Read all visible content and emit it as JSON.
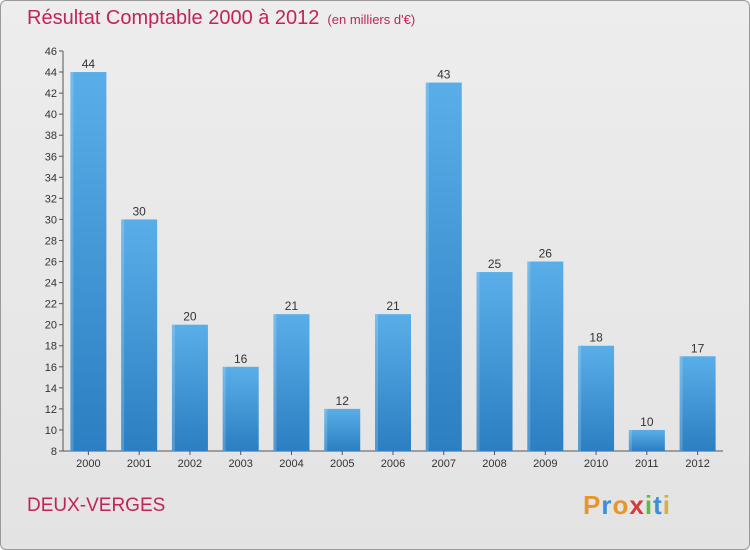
{
  "chart_data": {
    "type": "bar",
    "title": "Résultat Comptable 2000 à 2012",
    "subtitle": "(en milliers d'€)",
    "categories": [
      "2000",
      "2001",
      "2002",
      "2003",
      "2004",
      "2005",
      "2006",
      "2007",
      "2008",
      "2009",
      "2010",
      "2011",
      "2012"
    ],
    "values": [
      44,
      30,
      20,
      16,
      21,
      12,
      21,
      43,
      25,
      26,
      18,
      10,
      17
    ],
    "ylim": [
      8,
      46
    ],
    "yticks": [
      8,
      10,
      12,
      14,
      16,
      18,
      20,
      22,
      24,
      26,
      28,
      30,
      32,
      34,
      36,
      38,
      40,
      42,
      44,
      46
    ],
    "grid": false,
    "bar_color_light": "#5aaee8",
    "bar_color_dark": "#2b7fc2"
  },
  "footer": {
    "commune": "DEUX-VERGES",
    "logo_letters": [
      "P",
      "r",
      "o",
      "x",
      "i",
      "t",
      "i"
    ],
    "logo_colors": [
      "#e8962a",
      "#3a8fd6",
      "#e8962a",
      "#d63a3a",
      "#5bbf3a",
      "#3a8fd6",
      "#d6b03a"
    ]
  }
}
